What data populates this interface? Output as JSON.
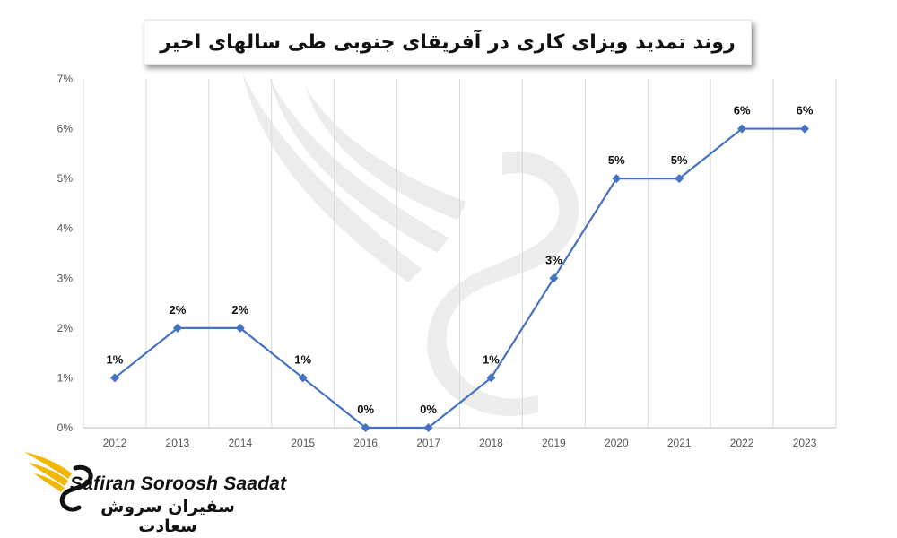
{
  "chart_data": {
    "type": "line",
    "title": "روند تمدید ویزای کاری در آفریقای جنوبی طی سالهای اخیر",
    "categories": [
      "2012",
      "2013",
      "2014",
      "2015",
      "2016",
      "2017",
      "2018",
      "2019",
      "2020",
      "2021",
      "2022",
      "2023"
    ],
    "series": [
      {
        "values": [
          1,
          2,
          2,
          1,
          0,
          0,
          1,
          3,
          5,
          5,
          6,
          6
        ],
        "labels": [
          "1%",
          "2%",
          "2%",
          "1%",
          "0%",
          "0%",
          "1%",
          "3%",
          "5%",
          "5%",
          "6%",
          "6%"
        ]
      }
    ],
    "y_ticks": [
      "0%",
      "1%",
      "2%",
      "3%",
      "4%",
      "5%",
      "6%",
      "7%"
    ],
    "ylim": [
      0,
      7
    ],
    "grid": "vertical",
    "line_color": "#4472C4",
    "marker": "diamond"
  },
  "branding": {
    "name_en": "Safiran Soroosh Saadat",
    "name_fa": "سفیران سروش سعادت",
    "accent_color": "#F2B705"
  }
}
